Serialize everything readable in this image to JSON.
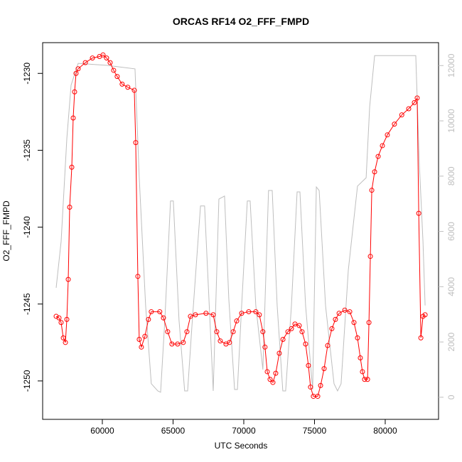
{
  "chart_data": {
    "type": "line",
    "title": "ORCAS RF14 O2_FFF_FMPD",
    "x_label": "UTC Seconds",
    "y_label": "O2_FFF_FMPD",
    "xlim": [
      55780,
      83770
    ],
    "xticks": [
      60000,
      65000,
      70000,
      75000,
      80000
    ],
    "ylim": [
      -1252.5,
      -1228
    ],
    "yticks": [
      -1250,
      -1245,
      -1240,
      -1235,
      -1230
    ],
    "y2lim": [
      -800,
      12830
    ],
    "y2ticks": [
      0,
      2000,
      4000,
      6000,
      8000,
      10000,
      12000
    ],
    "series": [
      {
        "color": "#ff0000",
        "marker": "circle",
        "x": [
          56735,
          56935,
          57085,
          57240,
          57390,
          57490,
          57590,
          57690,
          57840,
          57940,
          58040,
          58140,
          58290,
          58800,
          59300,
          59800,
          60050,
          60300,
          60550,
          60800,
          61050,
          61400,
          61800,
          62260,
          62360,
          62510,
          62610,
          62760,
          63010,
          63260,
          63460,
          64060,
          64320,
          64620,
          64920,
          65320,
          65720,
          65980,
          66230,
          66580,
          67330,
          67840,
          68090,
          68340,
          68740,
          68990,
          69250,
          69500,
          69850,
          70350,
          70850,
          71100,
          71350,
          71500,
          71660,
          71860,
          72060,
          72260,
          72510,
          72770,
          73120,
          73370,
          73620,
          73920,
          74120,
          74370,
          74570,
          74720,
          74920,
          75230,
          75430,
          75680,
          75930,
          76230,
          76480,
          76740,
          77140,
          77490,
          77790,
          78040,
          78240,
          78390,
          78540,
          78750,
          78850,
          78950,
          79050,
          79250,
          79500,
          79800,
          80150,
          80650,
          81170,
          81660,
          82060,
          82260,
          82370,
          82520,
          82670,
          82820
        ],
        "values": [
          -1245.8,
          -1245.9,
          -1246.2,
          -1247.2,
          -1247.5,
          -1246.0,
          -1243.4,
          -1238.7,
          -1236.1,
          -1232.9,
          -1231.2,
          -1230.0,
          -1229.7,
          -1229.3,
          -1229.0,
          -1228.9,
          -1228.8,
          -1229.0,
          -1229.3,
          -1229.8,
          -1230.2,
          -1230.7,
          -1230.9,
          -1231.1,
          -1234.5,
          -1243.2,
          -1247.3,
          -1247.8,
          -1247.1,
          -1246.0,
          -1245.5,
          -1245.5,
          -1245.9,
          -1246.8,
          -1247.6,
          -1247.6,
          -1247.5,
          -1246.8,
          -1245.8,
          -1245.7,
          -1245.6,
          -1245.7,
          -1246.8,
          -1247.4,
          -1247.6,
          -1247.5,
          -1246.8,
          -1246.1,
          -1245.6,
          -1245.5,
          -1245.5,
          -1245.7,
          -1246.8,
          -1247.8,
          -1249.4,
          -1249.9,
          -1250.1,
          -1249.5,
          -1248.2,
          -1247.3,
          -1246.8,
          -1246.6,
          -1246.3,
          -1246.4,
          -1246.8,
          -1247.6,
          -1249.0,
          -1250.4,
          -1251.0,
          -1251.0,
          -1250.3,
          -1249.2,
          -1247.7,
          -1246.6,
          -1246.0,
          -1245.6,
          -1245.4,
          -1245.5,
          -1246.2,
          -1247.2,
          -1248.5,
          -1249.4,
          -1249.9,
          -1249.9,
          -1246.2,
          -1241.9,
          -1237.6,
          -1236.4,
          -1235.4,
          -1234.7,
          -1234.0,
          -1233.3,
          -1232.7,
          -1232.3,
          -1231.9,
          -1231.6,
          -1239.1,
          -1247.2,
          -1245.8,
          -1245.7
        ]
      },
      {
        "color": "#bebebe",
        "axis": "y2",
        "x": [
          56735,
          57085,
          57490,
          57790,
          58290,
          60300,
          62310,
          62610,
          63060,
          63460,
          63920,
          64120,
          64420,
          64820,
          65020,
          65420,
          65820,
          66030,
          66330,
          66940,
          67230,
          67840,
          68240,
          68640,
          68940,
          69350,
          69550,
          69850,
          70250,
          70450,
          70850,
          71350,
          71750,
          72010,
          72360,
          72760,
          72960,
          73370,
          73770,
          73970,
          74370,
          74870,
          75130,
          75330,
          75780,
          76380,
          76630,
          76880,
          77390,
          78040,
          78650,
          78900,
          79250,
          80150,
          82160,
          82410,
          82670,
          82820
        ],
        "values": [
          3960,
          5630,
          9360,
          11290,
          12080,
          12010,
          11880,
          7940,
          3320,
          490,
          230,
          180,
          2800,
          7100,
          7100,
          2800,
          230,
          230,
          2540,
          6920,
          6920,
          230,
          7170,
          7280,
          3570,
          280,
          280,
          3320,
          7100,
          7100,
          3320,
          1000,
          7480,
          7480,
          3320,
          230,
          230,
          3320,
          7430,
          7430,
          3320,
          280,
          7610,
          7480,
          3320,
          490,
          230,
          490,
          4600,
          7640,
          7940,
          10510,
          12360,
          12360,
          12360,
          8460,
          5630,
          3320
        ]
      }
    ]
  }
}
